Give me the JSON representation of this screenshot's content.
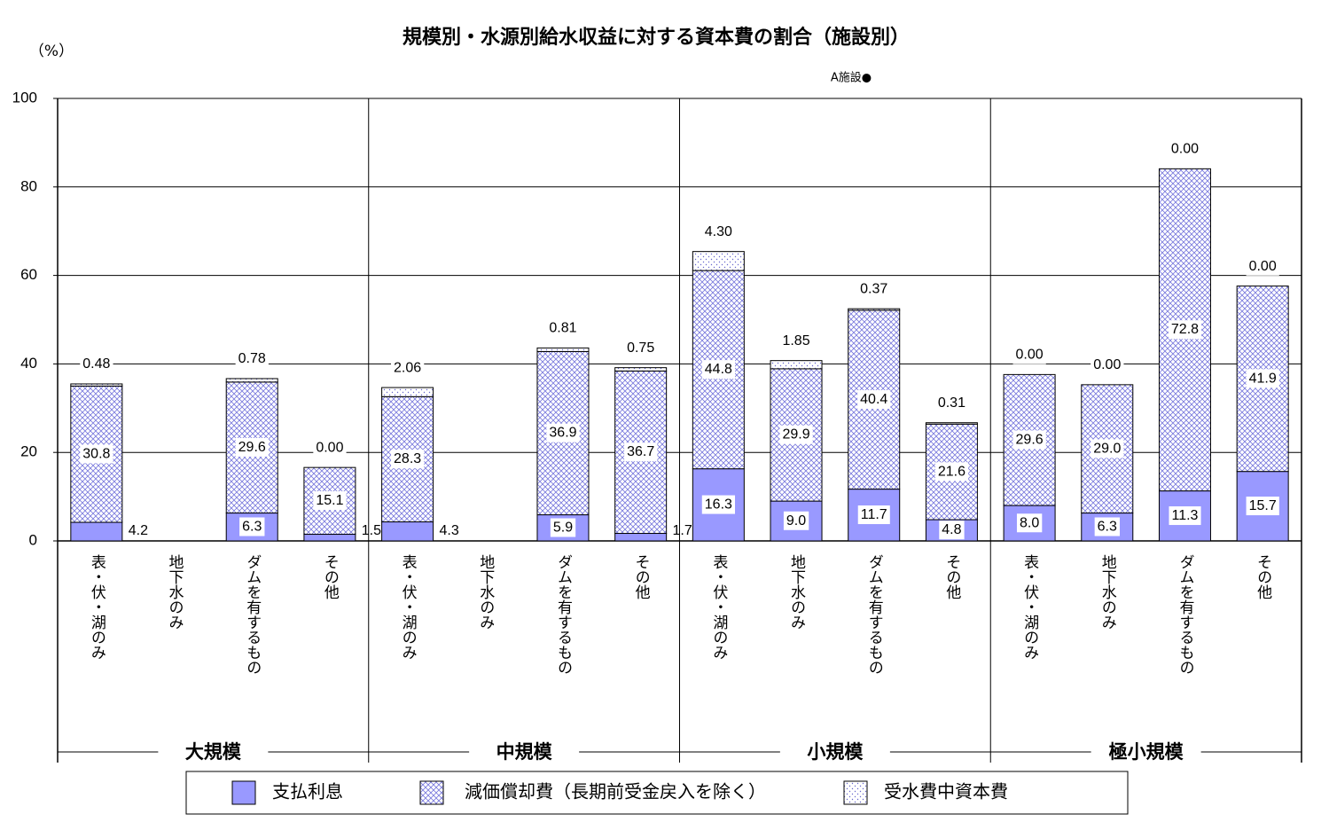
{
  "chart_data": {
    "type": "bar",
    "stacked": true,
    "title": "規模別・水源別給水収益に対する資本費の割合（施設別）",
    "y_label": "（%）",
    "annotation": "A施設●",
    "groups": [
      "大規模",
      "中規模",
      "小規模",
      "極小規模"
    ],
    "categories": [
      "表・伏・湖のみ",
      "地下水のみ",
      "ダムを有するもの",
      "その他",
      "表・伏・湖のみ",
      "地下水のみ",
      "ダムを有するもの",
      "その他",
      "表・伏・湖のみ",
      "地下水のみ",
      "ダムを有するもの",
      "その他",
      "表・伏・湖のみ",
      "地下水のみ",
      "ダムを有するもの",
      "その他"
    ],
    "series": [
      {
        "name": "支払利息",
        "color": "#9999ff",
        "values": [
          4.2,
          null,
          6.3,
          1.5,
          4.3,
          null,
          5.9,
          1.7,
          16.3,
          9.0,
          11.7,
          4.8,
          8.0,
          6.3,
          11.3,
          15.7
        ],
        "value_labels": [
          "4.2",
          null,
          "6.3",
          "1.5",
          "4.3",
          null,
          "5.9",
          "1.7",
          "16.3",
          "9.0",
          "11.7",
          "4.8",
          "8.0",
          "6.3",
          "11.3",
          "15.7"
        ]
      },
      {
        "name": "減価償却費（長期前受金戻入を除く）",
        "color": "#7777dd",
        "values": [
          30.8,
          null,
          29.6,
          15.1,
          28.3,
          null,
          36.9,
          36.7,
          44.8,
          29.9,
          40.4,
          21.6,
          29.6,
          29.0,
          72.8,
          41.9
        ],
        "value_labels": [
          "30.8",
          null,
          "29.6",
          "15.1",
          "28.3",
          null,
          "36.9",
          "36.7",
          "44.8",
          "29.9",
          "40.4",
          "21.6",
          "29.6",
          "29.0",
          "72.8",
          "41.9"
        ]
      },
      {
        "name": "受水費中資本費",
        "color": "#6666cc",
        "values": [
          0.48,
          null,
          0.78,
          0.0,
          2.06,
          null,
          0.81,
          0.75,
          4.3,
          1.85,
          0.37,
          0.31,
          0.0,
          0.0,
          0.0,
          0.0
        ],
        "value_labels": [
          "0.48",
          null,
          "0.78",
          "0.00",
          "2.06",
          null,
          "0.81",
          "0.75",
          "4.30",
          "1.85",
          "0.37",
          "0.31",
          "0.00",
          "0.00",
          "0.00",
          "0.00"
        ]
      }
    ],
    "ylim": [
      0,
      100
    ],
    "yticks": [
      0,
      20,
      40,
      60,
      80,
      100
    ],
    "grid": true
  }
}
